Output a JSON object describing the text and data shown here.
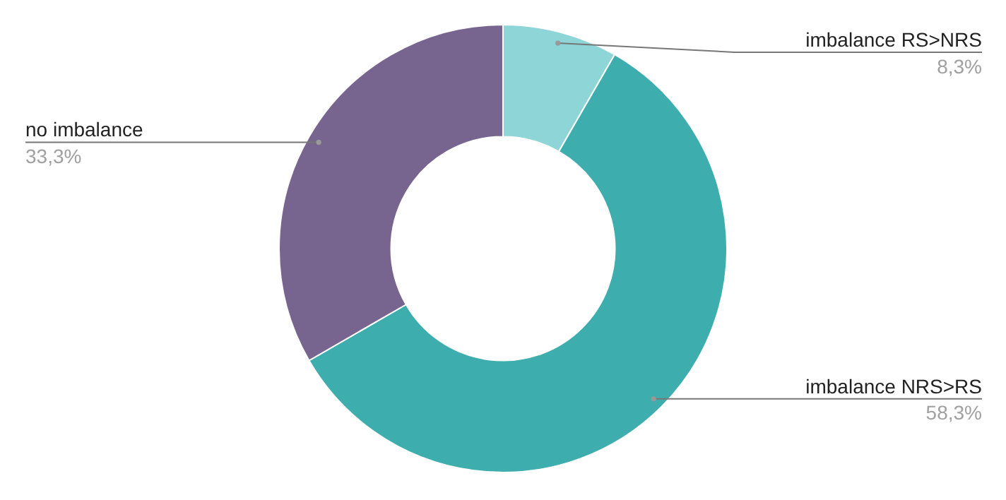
{
  "chart_data": {
    "type": "donut",
    "categories": [
      "imbalance RS>NRS",
      "imbalance NRS>RS",
      "no imbalance"
    ],
    "values": [
      8.3,
      58.3,
      33.3
    ],
    "value_labels": [
      "8,3%",
      "58,3%",
      "33,3%"
    ],
    "colors": [
      "#8dd5d6",
      "#3eadad",
      "#77648f"
    ],
    "legend": false
  }
}
